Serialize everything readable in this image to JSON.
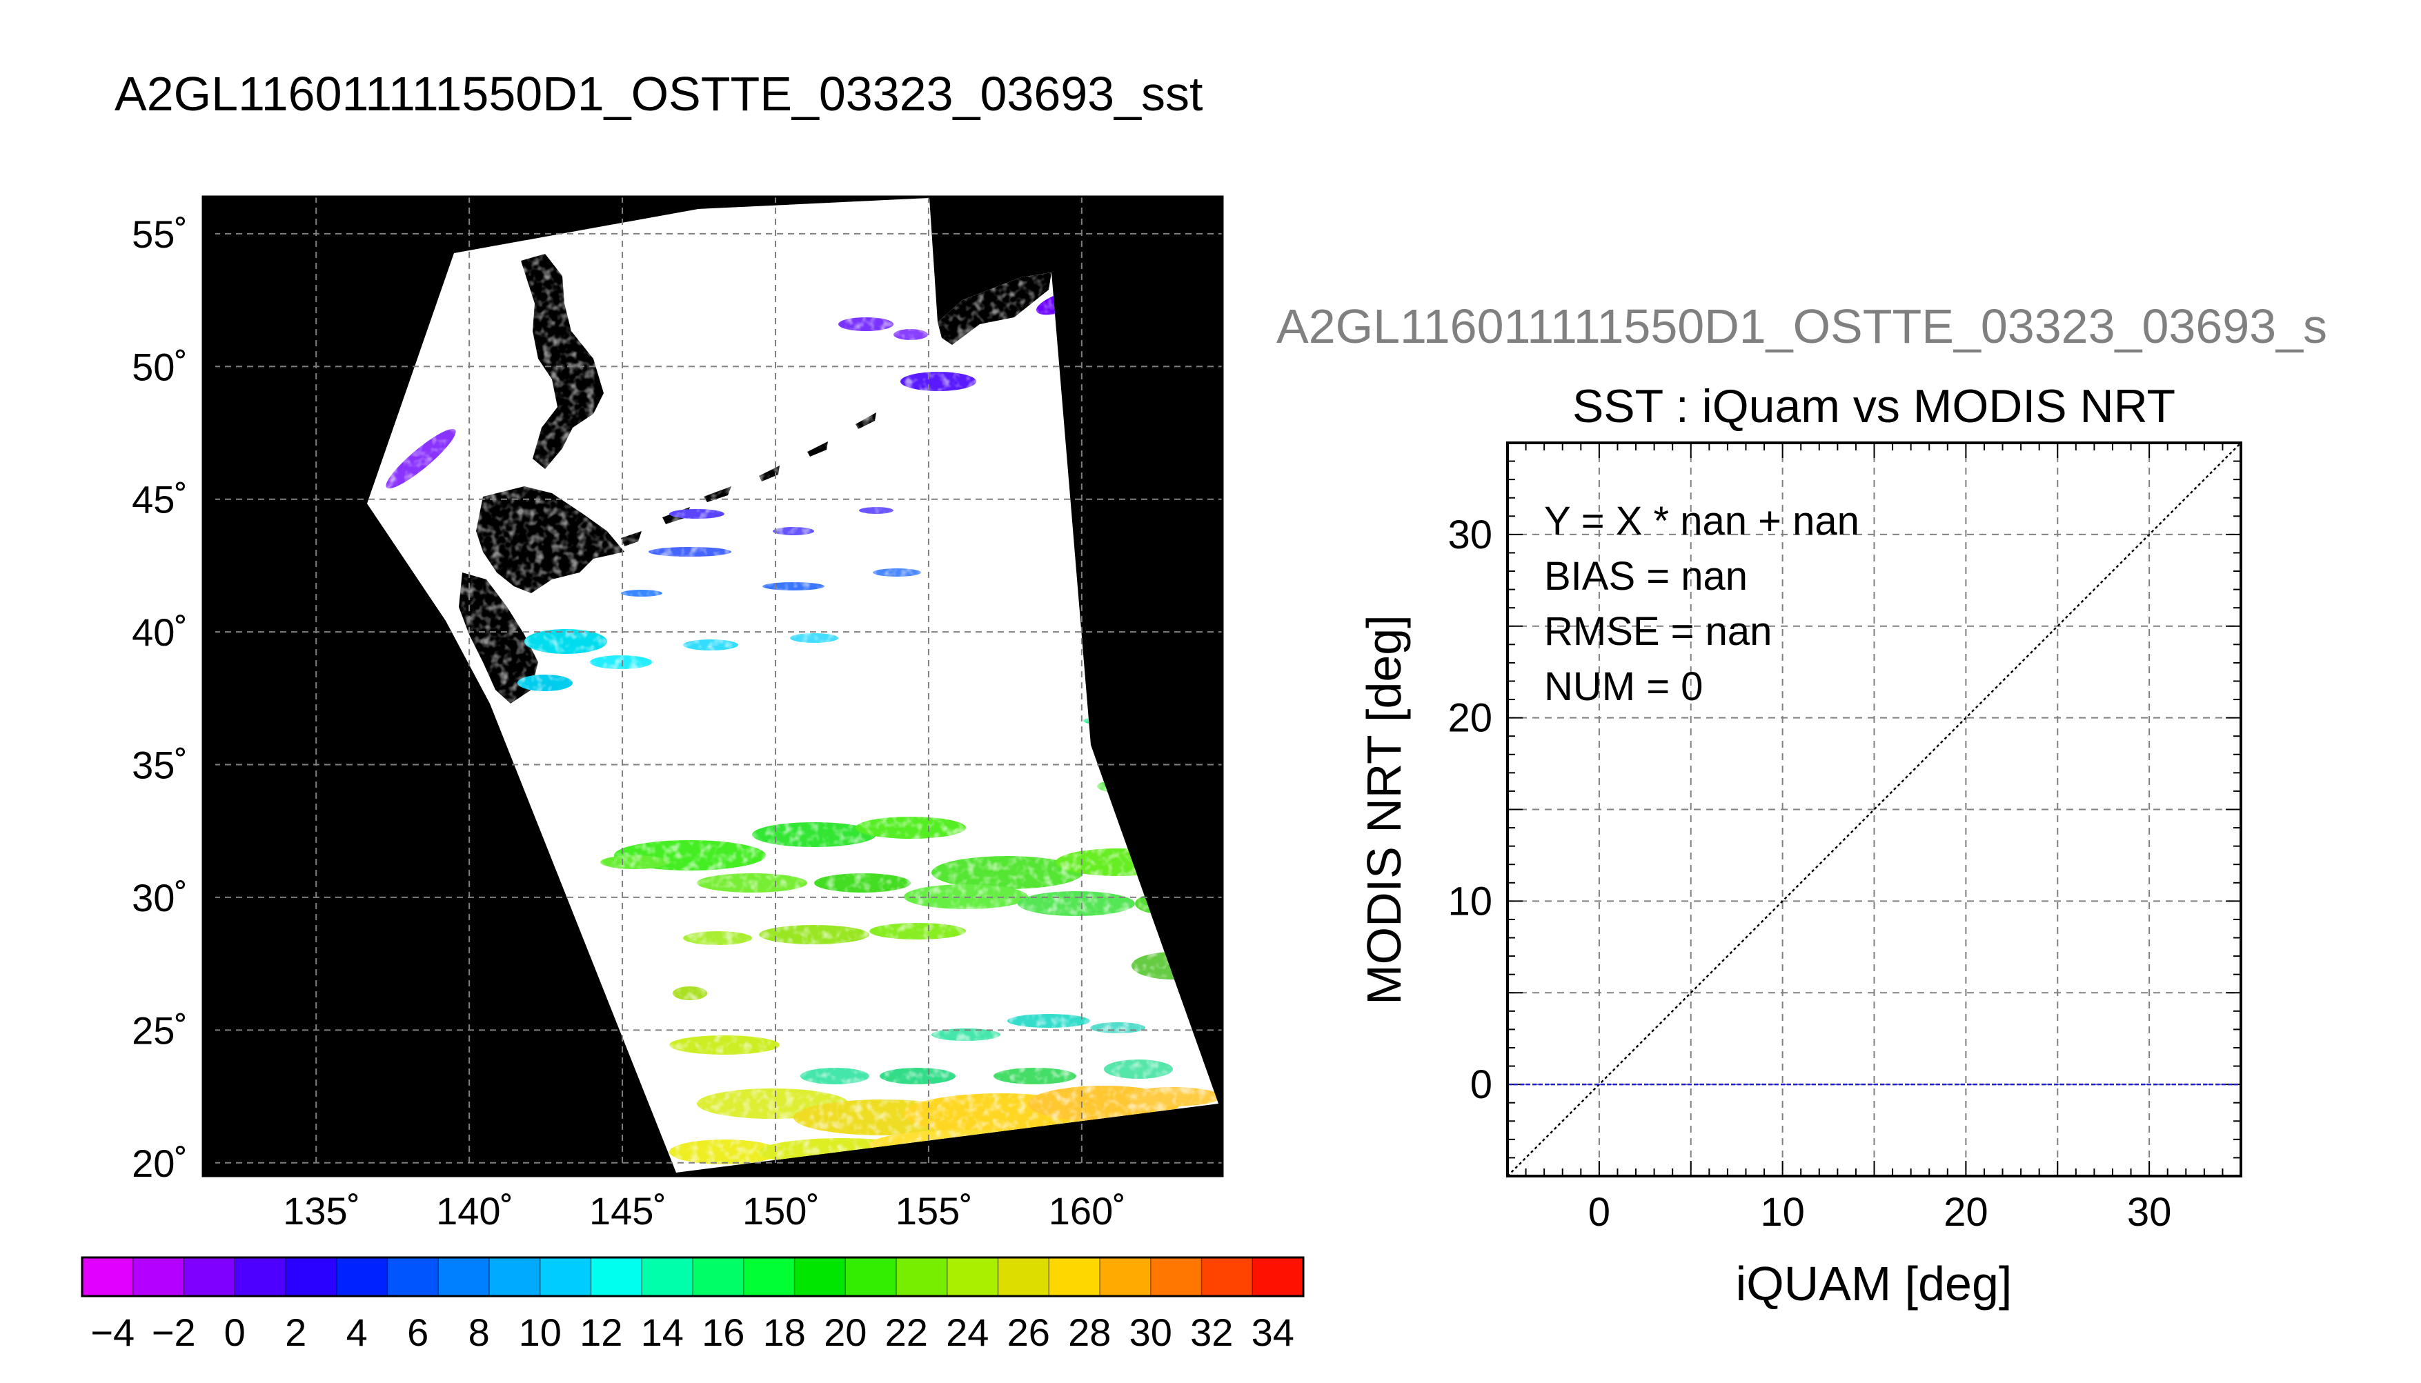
{
  "page_title": "A2GL116011111550D1_OSTTE_03323_03693_sst",
  "map": {
    "lon_ticks": [
      {
        "value": 135,
        "label": "135˚"
      },
      {
        "value": 140,
        "label": "140˚"
      },
      {
        "value": 145,
        "label": "145˚"
      },
      {
        "value": 150,
        "label": "150˚"
      },
      {
        "value": 155,
        "label": "155˚"
      },
      {
        "value": 160,
        "label": "160˚"
      }
    ],
    "lat_ticks": [
      {
        "value": 55,
        "label": "55˚"
      },
      {
        "value": 50,
        "label": "50˚"
      },
      {
        "value": 45,
        "label": "45˚"
      },
      {
        "value": 40,
        "label": "40˚"
      },
      {
        "value": 35,
        "label": "35˚"
      },
      {
        "value": 30,
        "label": "30˚"
      },
      {
        "value": 25,
        "label": "25˚"
      },
      {
        "value": 20,
        "label": "20˚"
      }
    ],
    "lon_range": [
      131.3,
      164.6
    ],
    "lat_range": [
      19.5,
      56.4
    ],
    "land_color": "#000000",
    "no_data_color": "#ffffff",
    "grid": true
  },
  "colorbar": {
    "ticks": [
      "−4",
      "−2",
      "0",
      "2",
      "4",
      "6",
      "8",
      "10",
      "12",
      "14",
      "16",
      "18",
      "20",
      "22",
      "24",
      "26",
      "28",
      "30",
      "32",
      "34"
    ],
    "colors": [
      "#e100ff",
      "#b400ff",
      "#8000ff",
      "#4d00ff",
      "#2a00ff",
      "#0022ff",
      "#0055ff",
      "#0080ff",
      "#00aaff",
      "#00ccff",
      "#00ffee",
      "#00ffaa",
      "#00ff66",
      "#00ff33",
      "#00e600",
      "#33ee00",
      "#77ee00",
      "#aaee00",
      "#dddd00",
      "#ffd700",
      "#ffaa00",
      "#ff7700",
      "#ff4400",
      "#ff1100"
    ]
  },
  "scatter": {
    "file_label": "A2GL116011111550D1_OSTTE_03323_03693_s",
    "title": "SST : iQuam vs MODIS NRT",
    "stats": [
      "Y = X * nan + nan",
      "BIAS = nan",
      "RMSE = nan",
      "NUM = 0"
    ]
  },
  "chart_data": [
    {
      "type": "heatmap",
      "title": "A2GL116011111550D1_OSTTE_03323_03693_sst",
      "x_ticks": [
        135,
        140,
        145,
        150,
        155,
        160
      ],
      "y_ticks": [
        55,
        50,
        45,
        40,
        35,
        30,
        25,
        20
      ],
      "xlim": [
        131.3,
        164.6
      ],
      "ylim": [
        19.5,
        56.4
      ],
      "colorbar_range": [
        -5,
        35
      ],
      "grid": true
    },
    {
      "type": "scatter",
      "title": "SST : iQuam vs MODIS NRT",
      "xlabel": "iQUAM [deg]",
      "ylabel": "MODIS NRT [deg]",
      "xlim": [
        -5,
        35
      ],
      "ylim": [
        -5,
        35
      ],
      "x_ticks": [
        0,
        10,
        20,
        30
      ],
      "y_ticks": [
        0,
        10,
        20,
        30
      ],
      "series": [],
      "reference_lines": [
        {
          "kind": "one_to_one",
          "style": "dotted",
          "color": "#000000"
        },
        {
          "kind": "horizontal",
          "y": 0,
          "style": "dashed",
          "color": "#2222cc"
        }
      ],
      "grid": true
    }
  ]
}
